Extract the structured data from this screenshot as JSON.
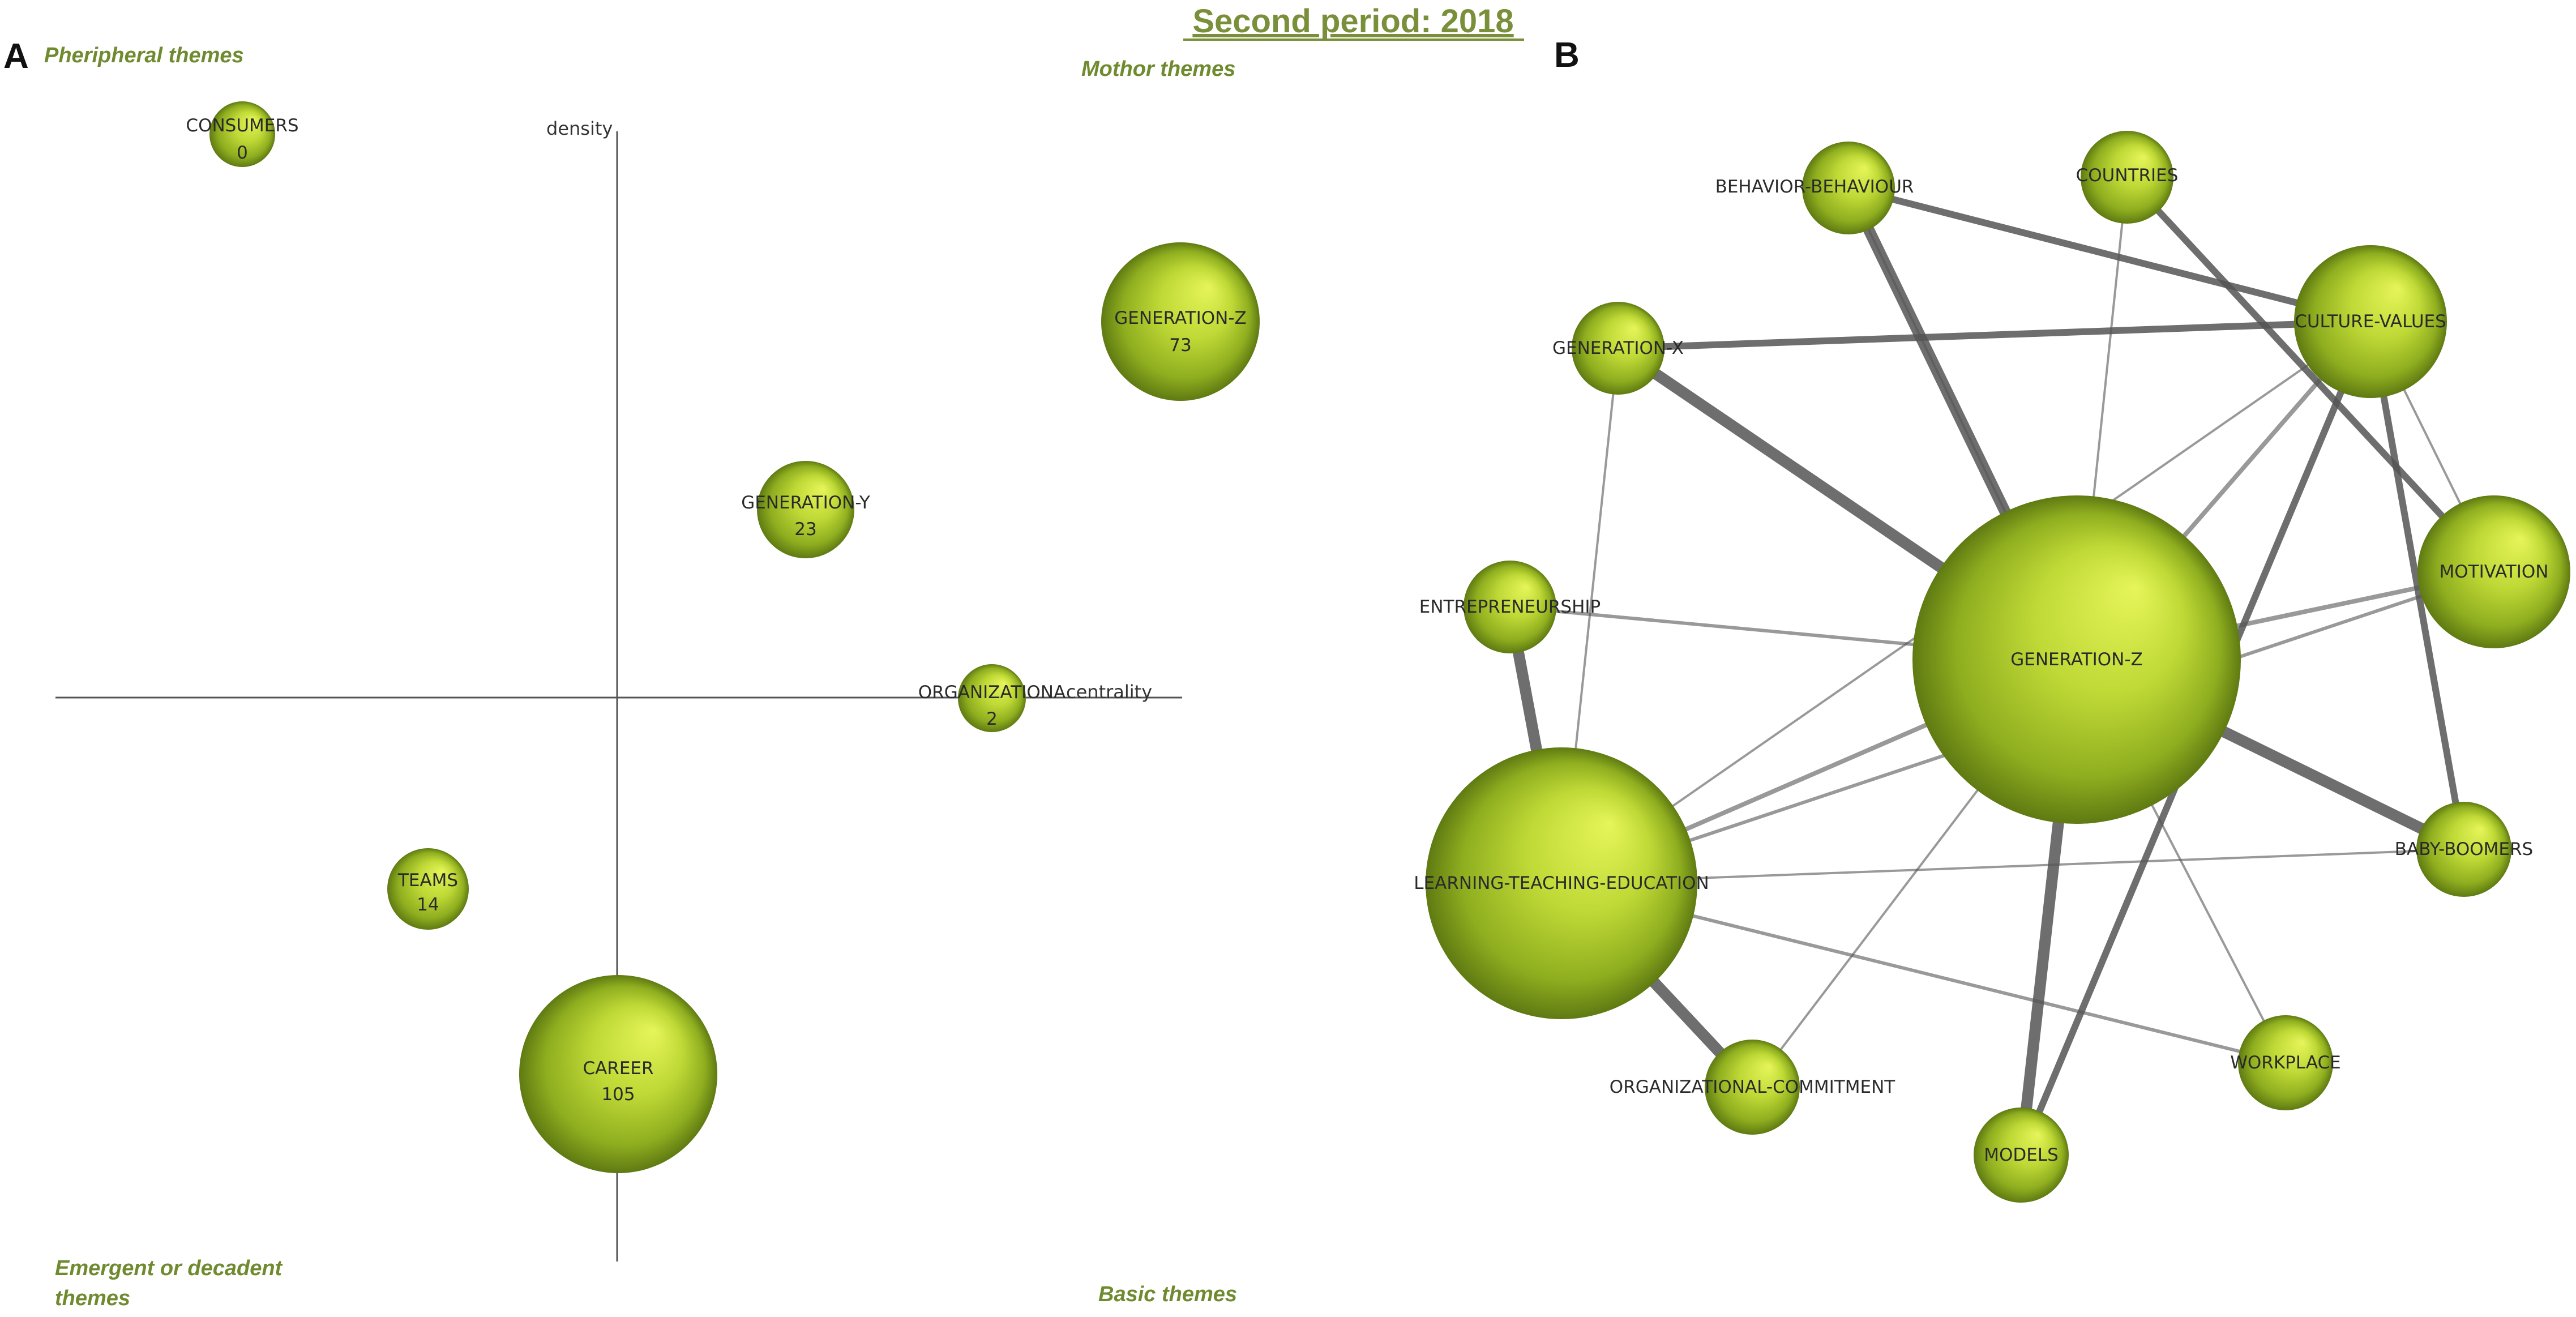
{
  "title": "Second period: 2018",
  "panels": {
    "a": {
      "letter": "A",
      "quadrants": {
        "top_left": "Pheripheral themes",
        "top_right": "Mothor themes",
        "bottom_left_line1": "Emergent or decadent",
        "bottom_left_line2": "themes",
        "bottom_right": "Basic themes"
      },
      "axes": {
        "y_label": "density",
        "x_label": "centrality"
      },
      "themes": [
        {
          "name": "CONSUMERS",
          "value": "0"
        },
        {
          "name": "GENERATION-Z",
          "value": "73"
        },
        {
          "name": "GENERATION-Y",
          "value": "23"
        },
        {
          "name": "ORGANIZATIONA",
          "value": "2"
        },
        {
          "name": "TEAMS",
          "value": "14"
        },
        {
          "name": "CAREER",
          "value": "105"
        }
      ]
    },
    "b": {
      "letter": "B",
      "nodes": [
        {
          "id": "behavior",
          "label": "BEHAVIOR-BEHAVIOUR"
        },
        {
          "id": "countries",
          "label": "COUNTRIES"
        },
        {
          "id": "culture",
          "label": "CULTURE-VALUES"
        },
        {
          "id": "genx",
          "label": "GENERATION-X"
        },
        {
          "id": "entre",
          "label": "ENTREPRENEURSHIP"
        },
        {
          "id": "motivation",
          "label": "MOTIVATION"
        },
        {
          "id": "genz",
          "label": "GENERATION-Z"
        },
        {
          "id": "learning",
          "label": "LEARNING-TEACHING-EDUCATION"
        },
        {
          "id": "baby",
          "label": "BABY-BOOMERS"
        },
        {
          "id": "workplace",
          "label": "WORKPLACE"
        },
        {
          "id": "orgcom",
          "label": "ORGANIZATIONAL-COMMITMENT"
        },
        {
          "id": "models",
          "label": "MODELS"
        }
      ],
      "edges": [
        {
          "from": "genz",
          "to": "behavior",
          "weight": 5
        },
        {
          "from": "genz",
          "to": "genx",
          "weight": 5
        },
        {
          "from": "genz",
          "to": "baby",
          "weight": 5
        },
        {
          "from": "genz",
          "to": "models",
          "weight": 5
        },
        {
          "from": "genz",
          "to": "countries",
          "weight": 1
        },
        {
          "from": "genz",
          "to": "culture",
          "weight": 2
        },
        {
          "from": "genz",
          "to": "motivation",
          "weight": 2
        },
        {
          "from": "genz",
          "to": "entre",
          "weight": 1.5
        },
        {
          "from": "genz",
          "to": "learning",
          "weight": 2
        },
        {
          "from": "genz",
          "to": "workplace",
          "weight": 1
        },
        {
          "from": "genz",
          "to": "orgcom",
          "weight": 1
        },
        {
          "from": "learning",
          "to": "entre",
          "weight": 5
        },
        {
          "from": "learning",
          "to": "orgcom",
          "weight": 5
        },
        {
          "from": "learning",
          "to": "workplace",
          "weight": 1.5
        },
        {
          "from": "learning",
          "to": "culture",
          "weight": 1
        },
        {
          "from": "learning",
          "to": "genx",
          "weight": 1
        },
        {
          "from": "genx",
          "to": "culture",
          "weight": 3
        },
        {
          "from": "behavior",
          "to": "culture",
          "weight": 3
        },
        {
          "from": "behavior",
          "to": "genz",
          "weight": 1
        },
        {
          "from": "countries",
          "to": "motivation",
          "weight": 3
        },
        {
          "from": "culture",
          "to": "models",
          "weight": 3
        },
        {
          "from": "culture",
          "to": "baby",
          "weight": 3
        },
        {
          "from": "culture",
          "to": "motivation",
          "weight": 1
        },
        {
          "from": "motivation",
          "to": "learning",
          "weight": 1.5
        },
        {
          "from": "baby",
          "to": "learning",
          "weight": 1
        }
      ]
    }
  },
  "colors": {
    "node_light": "#d9ef4a",
    "node_mid": "#a8c62c",
    "node_dark": "#5f7a12",
    "edge": "#555555",
    "accent": "#7a8f3a"
  }
}
